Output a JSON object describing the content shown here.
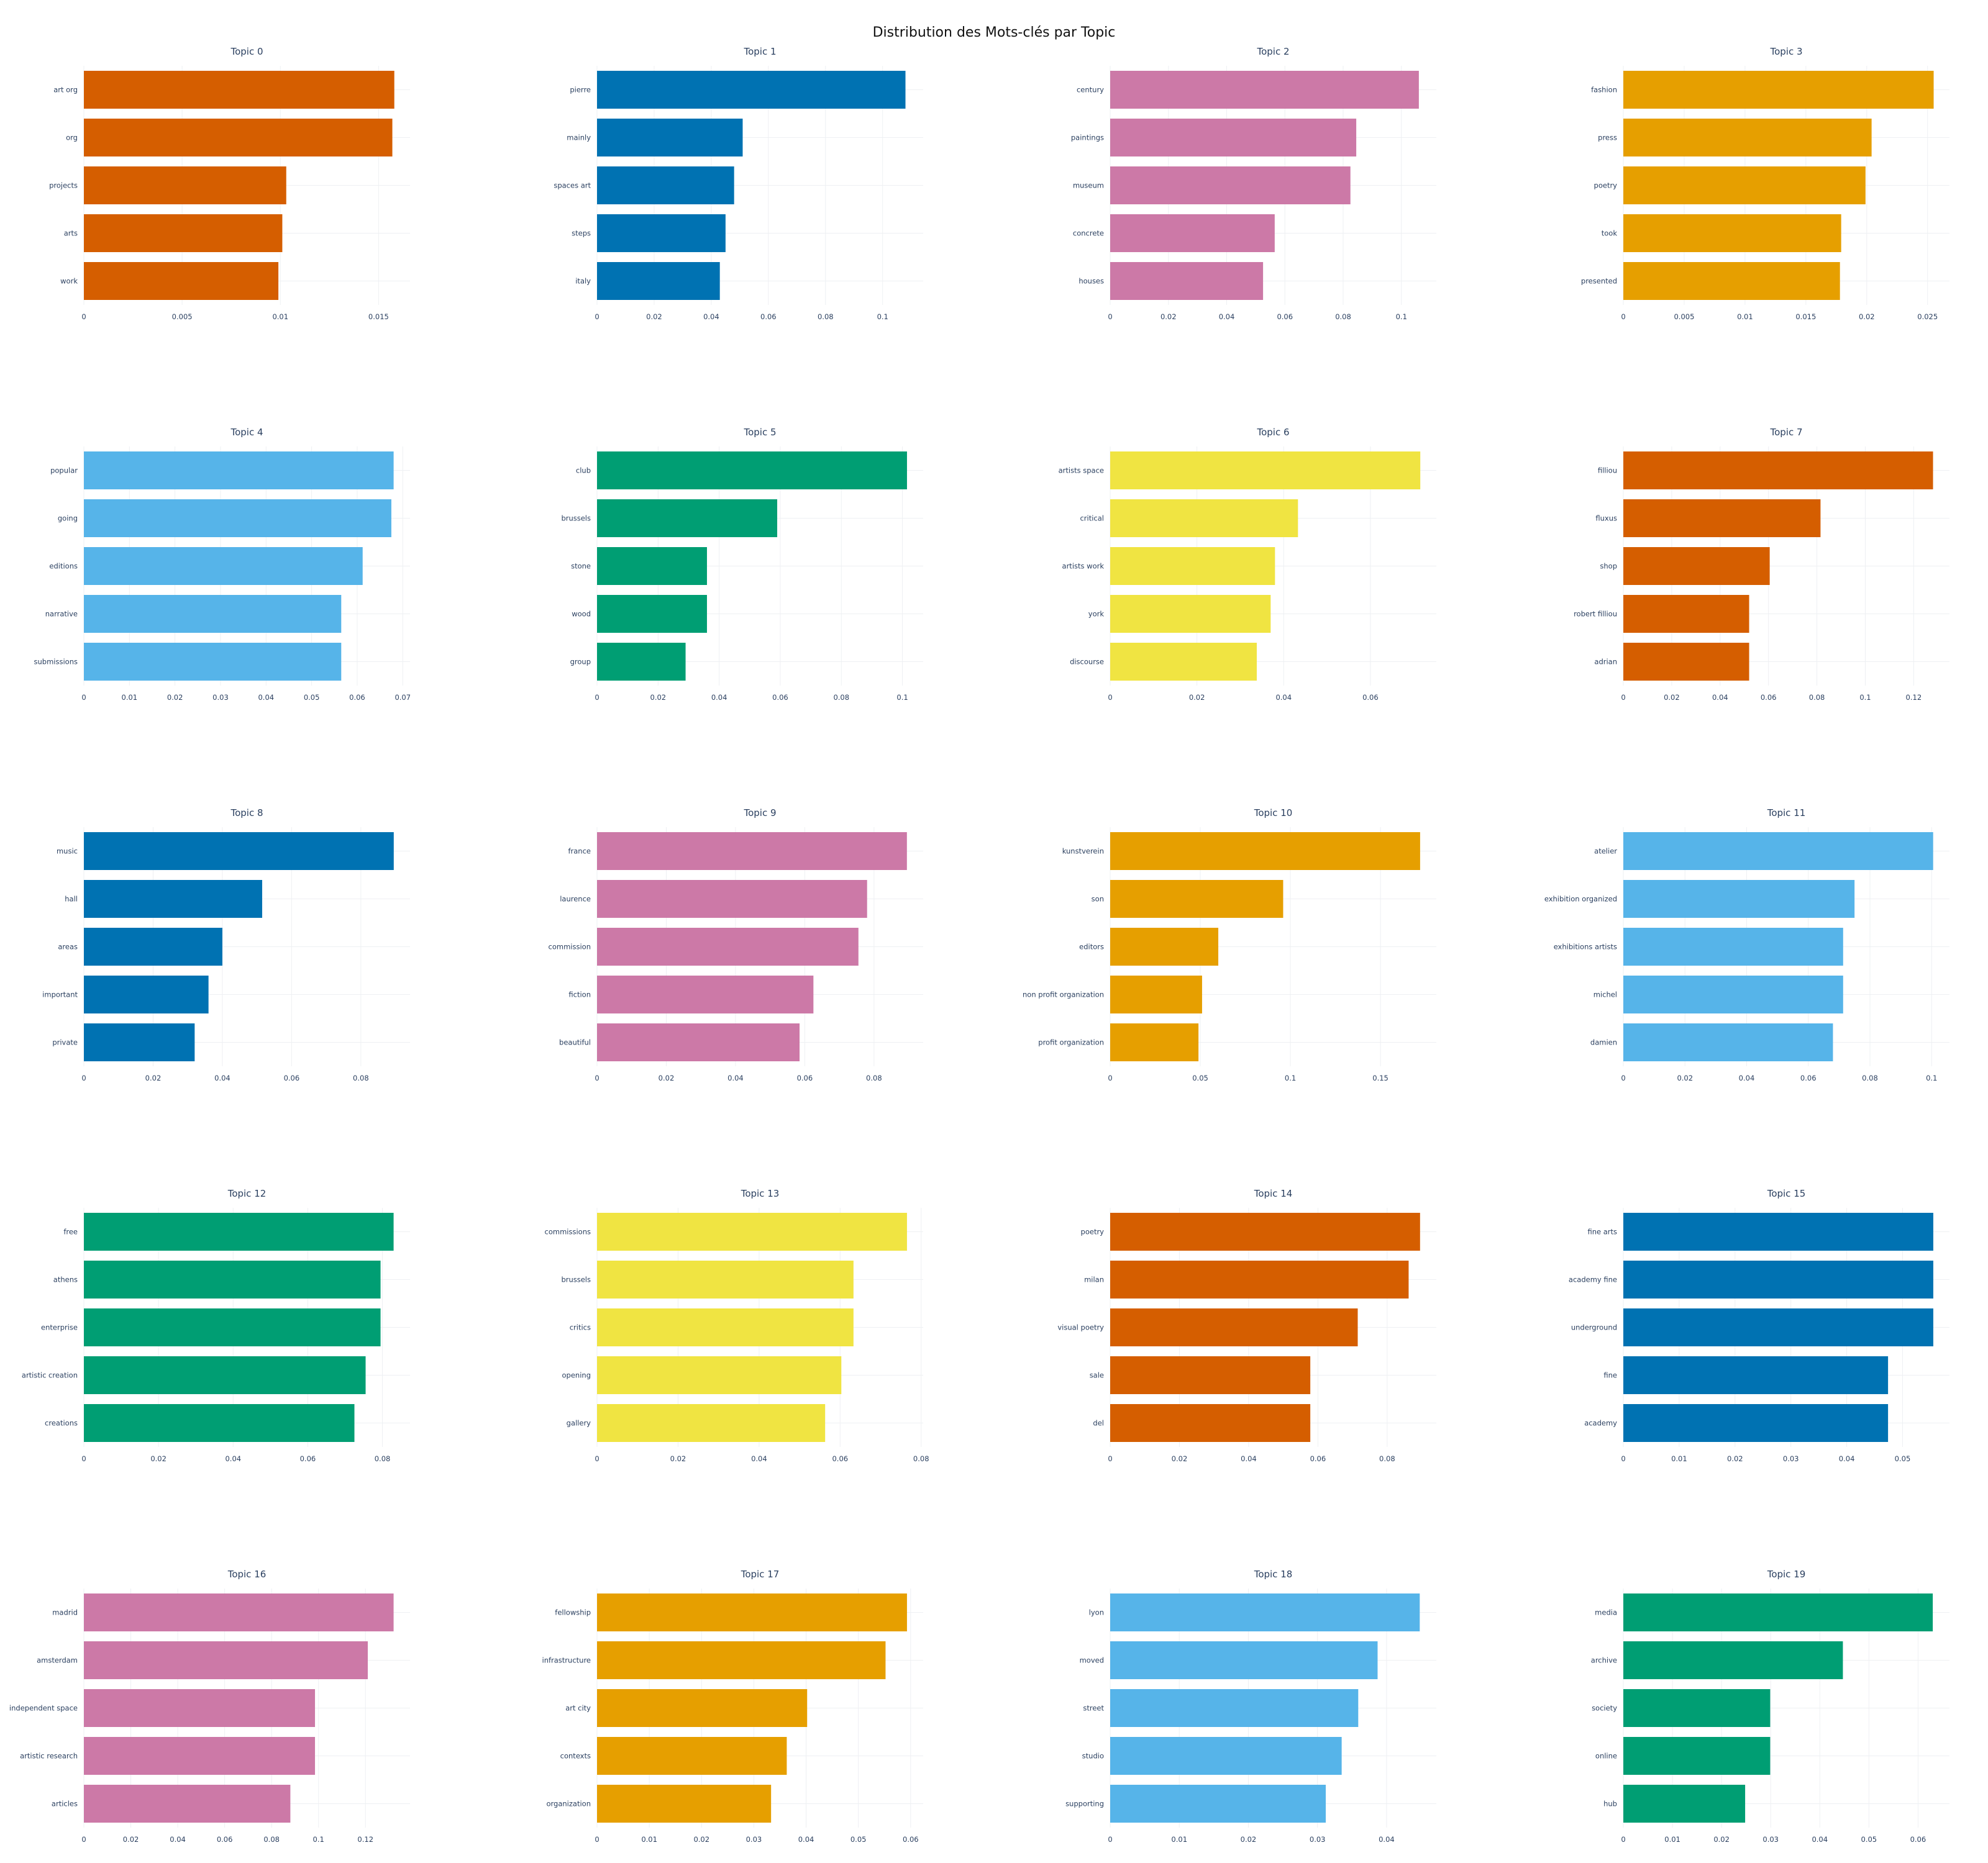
{
  "title": "Distribution des Mots-clés par Topic",
  "colors": [
    "#D55E00",
    "#0072B2",
    "#CC79A7",
    "#E69F00",
    "#56B4E9",
    "#009E73",
    "#F0E442"
  ],
  "chart_data": [
    {
      "type": "bar",
      "orientation": "horizontal",
      "title": "Topic 0",
      "color": "#D55E00",
      "categories": [
        "art org",
        "org",
        "projects",
        "arts",
        "work"
      ],
      "values": [
        0.0158,
        0.0157,
        0.0103,
        0.0101,
        0.0099
      ],
      "xmax": 0.0166,
      "ticks": [
        0,
        0.005,
        0.01,
        0.015
      ],
      "tick_labels": [
        "0",
        "0.005",
        "0.01",
        "0.015"
      ]
    },
    {
      "type": "bar",
      "orientation": "horizontal",
      "title": "Topic 1",
      "color": "#0072B2",
      "categories": [
        "pierre",
        "mainly",
        "spaces art",
        "steps",
        "italy"
      ],
      "values": [
        0.108,
        0.051,
        0.048,
        0.045,
        0.043
      ],
      "xmax": 0.1142,
      "ticks": [
        0,
        0.02,
        0.04,
        0.06,
        0.08,
        0.1
      ],
      "tick_labels": [
        "0",
        "0.02",
        "0.04",
        "0.06",
        "0.08",
        "0.1"
      ]
    },
    {
      "type": "bar",
      "orientation": "horizontal",
      "title": "Topic 2",
      "color": "#CC79A7",
      "categories": [
        "century",
        "paintings",
        "museum",
        "concrete",
        "houses"
      ],
      "values": [
        0.106,
        0.0845,
        0.0825,
        0.0565,
        0.0525
      ],
      "xmax": 0.112,
      "ticks": [
        0,
        0.02,
        0.04,
        0.06,
        0.08,
        0.1
      ],
      "tick_labels": [
        "0",
        "0.02",
        "0.04",
        "0.06",
        "0.08",
        "0.1"
      ]
    },
    {
      "type": "bar",
      "orientation": "horizontal",
      "title": "Topic 3",
      "color": "#E69F00",
      "categories": [
        "fashion",
        "press",
        "poetry",
        "took",
        "presented"
      ],
      "values": [
        0.0255,
        0.0204,
        0.0199,
        0.0179,
        0.0178
      ],
      "xmax": 0.0268,
      "ticks": [
        0,
        0.005,
        0.01,
        0.015,
        0.02,
        0.025
      ],
      "tick_labels": [
        "0",
        "0.005",
        "0.01",
        "0.015",
        "0.02",
        "0.025"
      ]
    },
    {
      "type": "bar",
      "orientation": "horizontal",
      "title": "Topic 4",
      "color": "#56B4E9",
      "categories": [
        "popular",
        "going",
        "editions",
        "narrative",
        "submissions"
      ],
      "values": [
        0.068,
        0.0675,
        0.0612,
        0.0565,
        0.0565
      ],
      "xmax": 0.0716,
      "ticks": [
        0,
        0.01,
        0.02,
        0.03,
        0.04,
        0.05,
        0.06,
        0.07
      ],
      "tick_labels": [
        "0",
        "0.01",
        "0.02",
        "0.03",
        "0.04",
        "0.05",
        "0.06",
        "0.07"
      ]
    },
    {
      "type": "bar",
      "orientation": "horizontal",
      "title": "Topic 5",
      "color": "#009E73",
      "categories": [
        "club",
        "brussels",
        "stone",
        "wood",
        "group"
      ],
      "values": [
        0.1015,
        0.059,
        0.036,
        0.036,
        0.029
      ],
      "xmax": 0.1068,
      "ticks": [
        0,
        0.02,
        0.04,
        0.06,
        0.08,
        0.1
      ],
      "tick_labels": [
        "0",
        "0.02",
        "0.04",
        "0.06",
        "0.08",
        "0.1"
      ]
    },
    {
      "type": "bar",
      "orientation": "horizontal",
      "title": "Topic 6",
      "color": "#F0E442",
      "categories": [
        "artists space",
        "critical",
        "artists work",
        "york",
        "discourse"
      ],
      "values": [
        0.0715,
        0.0433,
        0.038,
        0.037,
        0.0338
      ],
      "xmax": 0.0752,
      "ticks": [
        0,
        0.02,
        0.04,
        0.06
      ],
      "tick_labels": [
        "0",
        "0.02",
        "0.04",
        "0.06"
      ]
    },
    {
      "type": "bar",
      "orientation": "horizontal",
      "title": "Topic 7",
      "color": "#D55E00",
      "categories": [
        "filliou",
        "fluxus",
        "shop",
        "robert filliou",
        "adrian"
      ],
      "values": [
        0.128,
        0.0815,
        0.0605,
        0.052,
        0.052
      ],
      "xmax": 0.1348,
      "ticks": [
        0,
        0.02,
        0.04,
        0.06,
        0.08,
        0.1,
        0.12
      ],
      "tick_labels": [
        "0",
        "0.02",
        "0.04",
        "0.06",
        "0.08",
        "0.1",
        "0.12"
      ]
    },
    {
      "type": "bar",
      "orientation": "horizontal",
      "title": "Topic 8",
      "color": "#0072B2",
      "categories": [
        "music",
        "hall",
        "areas",
        "important",
        "private"
      ],
      "values": [
        0.0895,
        0.0515,
        0.04,
        0.036,
        0.032
      ],
      "xmax": 0.0942,
      "ticks": [
        0,
        0.02,
        0.04,
        0.06,
        0.08
      ],
      "tick_labels": [
        "0",
        "0.02",
        "0.04",
        "0.06",
        "0.08"
      ]
    },
    {
      "type": "bar",
      "orientation": "horizontal",
      "title": "Topic 9",
      "color": "#CC79A7",
      "categories": [
        "france",
        "laurence",
        "commission",
        "fiction",
        "beautiful"
      ],
      "values": [
        0.0895,
        0.078,
        0.0755,
        0.0625,
        0.0585
      ],
      "xmax": 0.0942,
      "ticks": [
        0,
        0.02,
        0.04,
        0.06,
        0.08
      ],
      "tick_labels": [
        "0",
        "0.02",
        "0.04",
        "0.06",
        "0.08"
      ]
    },
    {
      "type": "bar",
      "orientation": "horizontal",
      "title": "Topic 10",
      "color": "#E69F00",
      "categories": [
        "kunstverein",
        "son",
        "editors",
        "non profit organization",
        "profit organization"
      ],
      "values": [
        0.172,
        0.096,
        0.06,
        0.051,
        0.049
      ],
      "xmax": 0.181,
      "ticks": [
        0,
        0.05,
        0.1,
        0.15
      ],
      "tick_labels": [
        "0",
        "0.05",
        "0.1",
        "0.15"
      ]
    },
    {
      "type": "bar",
      "orientation": "horizontal",
      "title": "Topic 11",
      "color": "#56B4E9",
      "categories": [
        "atelier",
        "exhibition organized",
        "exhibitions artists",
        "michel",
        "damien"
      ],
      "values": [
        0.1005,
        0.075,
        0.0713,
        0.0713,
        0.068
      ],
      "xmax": 0.1058,
      "ticks": [
        0,
        0.02,
        0.04,
        0.06,
        0.08,
        0.1
      ],
      "tick_labels": [
        "0",
        "0.02",
        "0.04",
        "0.06",
        "0.08",
        "0.1"
      ]
    },
    {
      "type": "bar",
      "orientation": "horizontal",
      "title": "Topic 12",
      "color": "#009E73",
      "categories": [
        "free",
        "athens",
        "enterprise",
        "artistic creation",
        "creations"
      ],
      "values": [
        0.083,
        0.0795,
        0.0795,
        0.0755,
        0.0725
      ],
      "xmax": 0.0874,
      "ticks": [
        0,
        0.02,
        0.04,
        0.06,
        0.08
      ],
      "tick_labels": [
        "0",
        "0.02",
        "0.04",
        "0.06",
        "0.08"
      ]
    },
    {
      "type": "bar",
      "orientation": "horizontal",
      "title": "Topic 13",
      "color": "#F0E442",
      "categories": [
        "commissions",
        "brussels",
        "critics",
        "opening",
        "gallery"
      ],
      "values": [
        0.0765,
        0.0633,
        0.0633,
        0.0603,
        0.0563
      ],
      "xmax": 0.0805,
      "ticks": [
        0,
        0.02,
        0.04,
        0.06,
        0.08
      ],
      "tick_labels": [
        "0",
        "0.02",
        "0.04",
        "0.06",
        "0.08"
      ]
    },
    {
      "type": "bar",
      "orientation": "horizontal",
      "title": "Topic 14",
      "color": "#D55E00",
      "categories": [
        "poetry",
        "milan",
        "visual poetry",
        "sale",
        "del"
      ],
      "values": [
        0.0895,
        0.0862,
        0.0715,
        0.0578,
        0.0578
      ],
      "xmax": 0.0942,
      "ticks": [
        0,
        0.02,
        0.04,
        0.06,
        0.08
      ],
      "tick_labels": [
        "0",
        "0.02",
        "0.04",
        "0.06",
        "0.08"
      ]
    },
    {
      "type": "bar",
      "orientation": "horizontal",
      "title": "Topic 15",
      "color": "#0072B2",
      "categories": [
        "fine arts",
        "academy fine",
        "underground",
        "fine",
        "academy"
      ],
      "values": [
        0.0555,
        0.0555,
        0.0555,
        0.0474,
        0.0474
      ],
      "xmax": 0.0584,
      "ticks": [
        0,
        0.01,
        0.02,
        0.03,
        0.04,
        0.05
      ],
      "tick_labels": [
        "0",
        "0.01",
        "0.02",
        "0.03",
        "0.04",
        "0.05"
      ]
    },
    {
      "type": "bar",
      "orientation": "horizontal",
      "title": "Topic 16",
      "color": "#CC79A7",
      "categories": [
        "madrid",
        "amsterdam",
        "independent space",
        "artistic research",
        "articles"
      ],
      "values": [
        0.132,
        0.121,
        0.0985,
        0.0985,
        0.088
      ],
      "xmax": 0.139,
      "ticks": [
        0,
        0.02,
        0.04,
        0.06,
        0.08,
        0.1,
        0.12
      ],
      "tick_labels": [
        "0",
        "0.02",
        "0.04",
        "0.06",
        "0.08",
        "0.1",
        "0.12"
      ]
    },
    {
      "type": "bar",
      "orientation": "horizontal",
      "title": "Topic 17",
      "color": "#E69F00",
      "categories": [
        "fellowship",
        "infrastructure",
        "art city",
        "contexts",
        "organization"
      ],
      "values": [
        0.0593,
        0.0552,
        0.0402,
        0.0363,
        0.0333
      ],
      "xmax": 0.0624,
      "ticks": [
        0,
        0.01,
        0.02,
        0.03,
        0.04,
        0.05,
        0.06
      ],
      "tick_labels": [
        "0",
        "0.01",
        "0.02",
        "0.03",
        "0.04",
        "0.05",
        "0.06"
      ]
    },
    {
      "type": "bar",
      "orientation": "horizontal",
      "title": "Topic 18",
      "color": "#56B4E9",
      "categories": [
        "lyon",
        "moved",
        "street",
        "studio",
        "supporting"
      ],
      "values": [
        0.0448,
        0.0387,
        0.0359,
        0.0335,
        0.0312
      ],
      "xmax": 0.0472,
      "ticks": [
        0,
        0.01,
        0.02,
        0.03,
        0.04
      ],
      "tick_labels": [
        "0",
        "0.01",
        "0.02",
        "0.03",
        "0.04"
      ]
    },
    {
      "type": "bar",
      "orientation": "horizontal",
      "title": "Topic 19",
      "color": "#009E73",
      "categories": [
        "media",
        "archive",
        "society",
        "online",
        "hub"
      ],
      "values": [
        0.063,
        0.0447,
        0.0299,
        0.0299,
        0.0248
      ],
      "xmax": 0.0664,
      "ticks": [
        0,
        0.01,
        0.02,
        0.03,
        0.04,
        0.05,
        0.06
      ],
      "tick_labels": [
        "0",
        "0.01",
        "0.02",
        "0.03",
        "0.04",
        "0.05",
        "0.06"
      ]
    }
  ]
}
